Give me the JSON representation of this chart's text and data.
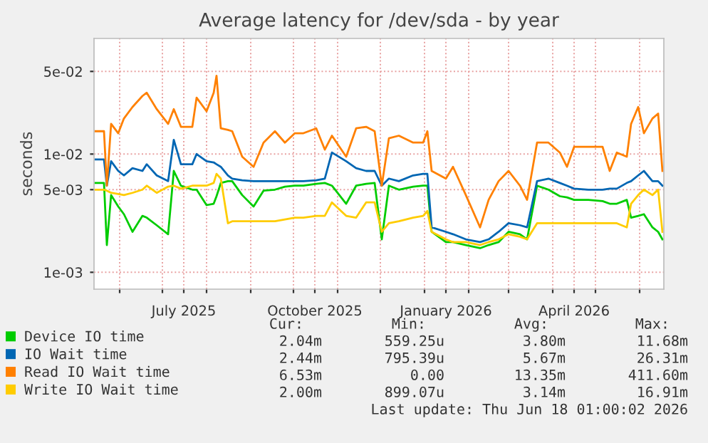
{
  "chart_data": {
    "type": "line",
    "title": "Average latency for /dev/sda - by year",
    "ylabel": "seconds",
    "log": "y",
    "grid": true,
    "legend": "bottom",
    "line_style": "solid",
    "marker": "none",
    "x": [
      "2025-05-15",
      "2025-05-21",
      "2025-05-23",
      "2025-05-26",
      "2025-05-31",
      "2025-06-04",
      "2025-06-10",
      "2025-06-17",
      "2025-06-20",
      "2025-06-27",
      "2025-07-05",
      "2025-07-09",
      "2025-07-14",
      "2025-07-22",
      "2025-07-25",
      "2025-08-01",
      "2025-08-06",
      "2025-08-08",
      "2025-08-11",
      "2025-08-16",
      "2025-08-19",
      "2025-08-26",
      "2025-09-03",
      "2025-09-10",
      "2025-09-18",
      "2025-09-25",
      "2025-10-02",
      "2025-10-08",
      "2025-10-17",
      "2025-10-23",
      "2025-10-28",
      "2025-11-07",
      "2025-11-14",
      "2025-11-21",
      "2025-11-27",
      "2025-12-02",
      "2025-12-07",
      "2025-12-14",
      "2025-12-24",
      "2025-12-31",
      "2026-01-03",
      "2026-01-06",
      "2026-01-16",
      "2026-01-21",
      "2026-01-30",
      "2026-02-09",
      "2026-02-15",
      "2026-02-22",
      "2026-03-01",
      "2026-03-09",
      "2026-03-14",
      "2026-03-21",
      "2026-03-29",
      "2026-04-06",
      "2026-04-11",
      "2026-04-16",
      "2026-04-26",
      "2026-05-06",
      "2026-05-11",
      "2026-05-16",
      "2026-05-23",
      "2026-05-26",
      "2026-05-31",
      "2026-06-04",
      "2026-06-10",
      "2026-06-14",
      "2026-06-17"
    ],
    "xlim": [
      "2025-05-14",
      "2026-06-18"
    ],
    "xticks": [
      {
        "value": "2025-06-01",
        "label": null
      },
      {
        "value": "2025-07-01",
        "label": null
      },
      {
        "value": "2025-07-16",
        "label": "July 2025"
      },
      {
        "value": "2025-08-01",
        "label": null
      },
      {
        "value": "2025-09-01",
        "label": null
      },
      {
        "value": "2025-10-01",
        "label": null
      },
      {
        "value": "2025-10-16",
        "label": "October 2025"
      },
      {
        "value": "2025-11-01",
        "label": null
      },
      {
        "value": "2025-12-01",
        "label": null
      },
      {
        "value": "2026-01-01",
        "label": null
      },
      {
        "value": "2026-01-16",
        "label": "January 2026"
      },
      {
        "value": "2026-02-01",
        "label": null
      },
      {
        "value": "2026-03-01",
        "label": null
      },
      {
        "value": "2026-04-01",
        "label": null
      },
      {
        "value": "2026-04-16",
        "label": "April 2026"
      },
      {
        "value": "2026-05-01",
        "label": null
      },
      {
        "value": "2026-06-01",
        "label": null
      }
    ],
    "ylim": [
      0.00072,
      0.095
    ],
    "yticks": [
      {
        "value": 0.001,
        "label": "1e-03"
      },
      {
        "value": 0.005,
        "label": "5e-03"
      },
      {
        "value": 0.01,
        "label": "1e-02"
      },
      {
        "value": 0.05,
        "label": "5e-02"
      }
    ],
    "series": [
      {
        "name": "Device IO time",
        "color": "#00cc00",
        "values": [
          0.0057,
          0.0057,
          0.0017,
          0.0045,
          0.0036,
          0.0031,
          0.0022,
          0.003,
          0.0029,
          0.0025,
          0.0021,
          0.0072,
          0.0054,
          0.005,
          0.005,
          0.0037,
          0.0038,
          0.0044,
          0.0057,
          0.0059,
          0.0059,
          0.0045,
          0.0036,
          0.0049,
          0.005,
          0.0053,
          0.0054,
          0.0054,
          0.0056,
          0.0057,
          0.0054,
          0.0038,
          0.0054,
          0.0056,
          0.0057,
          0.0019,
          0.0054,
          0.005,
          0.0053,
          0.0054,
          0.0054,
          0.0022,
          0.0018,
          0.0018,
          0.0017,
          0.0016,
          0.0017,
          0.0018,
          0.0022,
          0.0021,
          0.0019,
          0.0054,
          0.005,
          0.0044,
          0.0043,
          0.0041,
          0.0041,
          0.004,
          0.0038,
          0.0038,
          0.0041,
          0.0029,
          0.003,
          0.0031,
          0.0024,
          0.0022,
          0.0019
        ]
      },
      {
        "name": "IO Wait time",
        "color": "#0066b3",
        "values": [
          0.009,
          0.009,
          0.0054,
          0.0087,
          0.0072,
          0.0066,
          0.0076,
          0.0072,
          0.0082,
          0.0066,
          0.0059,
          0.0132,
          0.0082,
          0.0082,
          0.01,
          0.0087,
          0.0085,
          0.0082,
          0.0078,
          0.0066,
          0.0062,
          0.006,
          0.0059,
          0.0059,
          0.0059,
          0.0059,
          0.0059,
          0.0059,
          0.006,
          0.0062,
          0.0103,
          0.0087,
          0.0076,
          0.0072,
          0.0072,
          0.0054,
          0.0062,
          0.0059,
          0.0066,
          0.0068,
          0.0068,
          0.0024,
          0.0022,
          0.0021,
          0.0019,
          0.0018,
          0.0019,
          0.0022,
          0.0026,
          0.0025,
          0.0024,
          0.0059,
          0.0062,
          0.0057,
          0.0054,
          0.0051,
          0.005,
          0.005,
          0.0051,
          0.0051,
          0.0057,
          0.0059,
          0.0066,
          0.0072,
          0.0059,
          0.0059,
          0.0054
        ]
      },
      {
        "name": "Read IO Wait time",
        "color": "#ff8000",
        "values": [
          0.0156,
          0.0156,
          0.0054,
          0.018,
          0.015,
          0.02,
          0.025,
          0.031,
          0.033,
          0.024,
          0.018,
          0.024,
          0.017,
          0.017,
          0.03,
          0.023,
          0.033,
          0.046,
          0.0165,
          0.016,
          0.0156,
          0.0095,
          0.0078,
          0.0125,
          0.0156,
          0.0125,
          0.015,
          0.015,
          0.0165,
          0.0109,
          0.0143,
          0.0095,
          0.0165,
          0.017,
          0.0156,
          0.0054,
          0.0136,
          0.0143,
          0.0125,
          0.0125,
          0.0156,
          0.0072,
          0.0062,
          0.0078,
          0.0045,
          0.0024,
          0.0041,
          0.0059,
          0.0072,
          0.0054,
          0.0041,
          0.0125,
          0.0125,
          0.0103,
          0.0078,
          0.0115,
          0.0115,
          0.0115,
          0.0072,
          0.0103,
          0.0095,
          0.018,
          0.025,
          0.015,
          0.02,
          0.022,
          0.0072
        ]
      },
      {
        "name": "Write IO Wait time",
        "color": "#ffcc00",
        "values": [
          0.005,
          0.005,
          0.0049,
          0.0047,
          0.0046,
          0.0045,
          0.0047,
          0.005,
          0.0054,
          0.0047,
          0.0053,
          0.0054,
          0.0051,
          0.0054,
          0.0054,
          0.0054,
          0.0057,
          0.0068,
          0.0062,
          0.0026,
          0.0027,
          0.0027,
          0.0027,
          0.0027,
          0.0027,
          0.0028,
          0.0029,
          0.0029,
          0.003,
          0.003,
          0.0039,
          0.003,
          0.0029,
          0.0039,
          0.0039,
          0.0022,
          0.0026,
          0.0027,
          0.0029,
          0.003,
          0.0033,
          0.0022,
          0.0019,
          0.0018,
          0.0018,
          0.0017,
          0.0018,
          0.0019,
          0.0021,
          0.002,
          0.0019,
          0.0026,
          0.0026,
          0.0026,
          0.0026,
          0.0026,
          0.0026,
          0.0026,
          0.0026,
          0.0026,
          0.0024,
          0.0038,
          0.0045,
          0.005,
          0.0045,
          0.005,
          0.0022
        ]
      }
    ],
    "annotations": [
      "Cur:",
      "Min:",
      "Avg:",
      "Max:",
      "2.04m",
      "559.25u",
      "3.80m",
      "11.68m",
      "2.44m",
      "795.39u",
      "5.67m",
      "26.31m",
      "6.53m",
      "0.00",
      "13.35m",
      "411.60m",
      "2.00m",
      "899.07u",
      "3.14m",
      "16.91m",
      "Last update: Thu Jun 18 01:00:02 2026"
    ]
  }
}
